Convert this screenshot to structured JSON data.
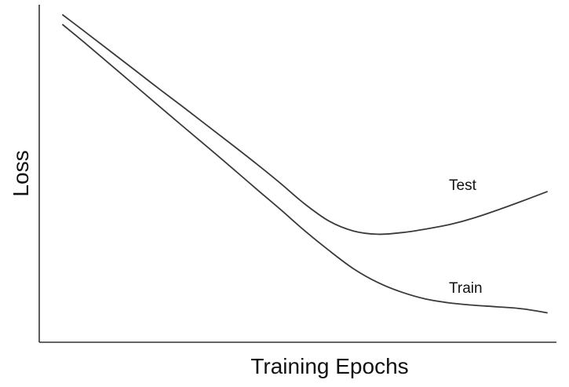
{
  "chart_data": {
    "type": "line",
    "title": "",
    "xlabel": "Training Epochs",
    "ylabel": "Loss",
    "xlim": [
      0,
      100
    ],
    "ylim": [
      0,
      100
    ],
    "x_ticks": false,
    "y_ticks": false,
    "grid": false,
    "legend": "none",
    "series": [
      {
        "name": "Test",
        "x": [
          0,
          5,
          10,
          15,
          20,
          25,
          30,
          35,
          40,
          45,
          50,
          55,
          60,
          65,
          70,
          75,
          80,
          85,
          90,
          95,
          100
        ],
        "y": [
          100,
          94.4,
          88.7,
          83.0,
          77.3,
          71.7,
          66.0,
          60.3,
          54.5,
          48.5,
          42.2,
          37.0,
          34.0,
          33.0,
          33.5,
          34.6,
          36.0,
          38.0,
          40.5,
          43.2,
          46.0
        ]
      },
      {
        "name": "Train",
        "x": [
          0,
          5,
          10,
          15,
          20,
          25,
          30,
          35,
          40,
          45,
          50,
          55,
          60,
          65,
          70,
          75,
          80,
          85,
          90,
          95,
          100
        ],
        "y": [
          97,
          90.9,
          84.6,
          78.3,
          72.0,
          65.7,
          59.5,
          53.2,
          46.8,
          40.5,
          34.0,
          28.0,
          22.5,
          18.3,
          15.3,
          13.2,
          12.0,
          11.3,
          10.8,
          10.2,
          9.0
        ]
      }
    ],
    "annotations": [
      {
        "text": "Test",
        "series": "Test"
      },
      {
        "text": "Train",
        "series": "Train"
      }
    ]
  }
}
